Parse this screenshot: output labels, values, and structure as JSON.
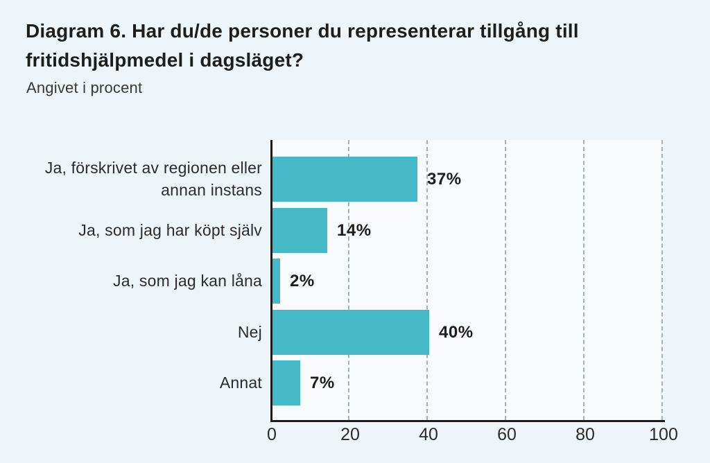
{
  "page": {
    "background_color": "#EEF5F8"
  },
  "header": {
    "title": "Diagram 6. Har du/de personer du representerar tillgång till fritidshjälpmedel i dagsläget?",
    "subtitle": "Angivet i procent"
  },
  "chart_data": {
    "type": "bar",
    "orientation": "horizontal",
    "title": "Diagram 6. Har du/de personer du representerar tillgång till fritidshjälpmedel i dagsläget?",
    "subtitle": "Angivet i procent",
    "unit": "percent",
    "categories": [
      "Ja, förskrivet av regionen eller annan instans",
      "Ja, som jag har köpt själv",
      "Ja, som jag kan låna",
      "Nej",
      "Annat"
    ],
    "values": [
      37,
      14,
      2,
      40,
      7
    ],
    "value_labels": [
      "37%",
      "14%",
      "2%",
      "40%",
      "7%"
    ],
    "xlabel": "",
    "ylabel": "",
    "xlim": [
      0,
      100
    ],
    "x_ticks": [
      0,
      20,
      40,
      60,
      80,
      100
    ],
    "x_tick_labels": [
      "0",
      "20",
      "40",
      "60",
      "80",
      "100"
    ],
    "grid": "vertical-dashed",
    "legend": "none",
    "bar_color": "#46B9C9",
    "grid_color": "#A7B1B6",
    "axis_color": "#1A1B1A",
    "plot_background": "#F8FBFC"
  }
}
